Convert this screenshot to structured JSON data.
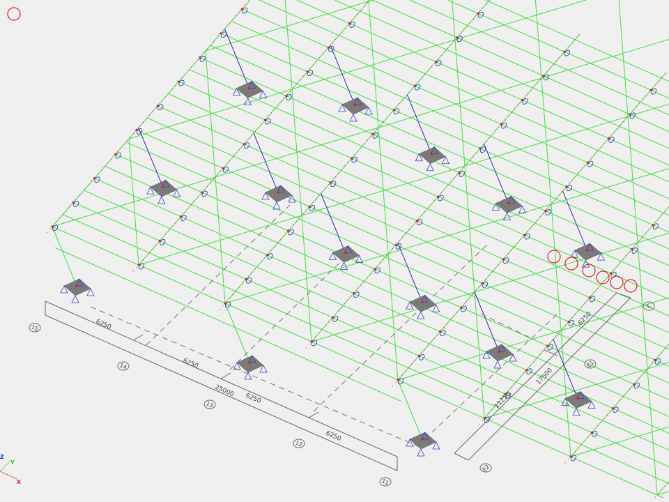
{
  "colors": {
    "background": "#efefef",
    "member": "#44dd44",
    "column": "#3030b0",
    "node": "#dd2020",
    "support": "#7a7a7a",
    "release": "#3040c0",
    "dimension": "#666666"
  },
  "grid_lines_x": [
    "15",
    "14",
    "13",
    "12",
    "11"
  ],
  "grid_lines_y": [
    "E2",
    "E1",
    "E"
  ],
  "dimensions_x": {
    "bays": [
      "6250",
      "6250",
      "6250",
      "6250"
    ],
    "total": "25000"
  },
  "dimensions_y": {
    "segments": [
      "11250",
      "6250"
    ],
    "total": "17500"
  },
  "axis_triad": {
    "x": "X",
    "y": "Y",
    "z": "Z"
  }
}
